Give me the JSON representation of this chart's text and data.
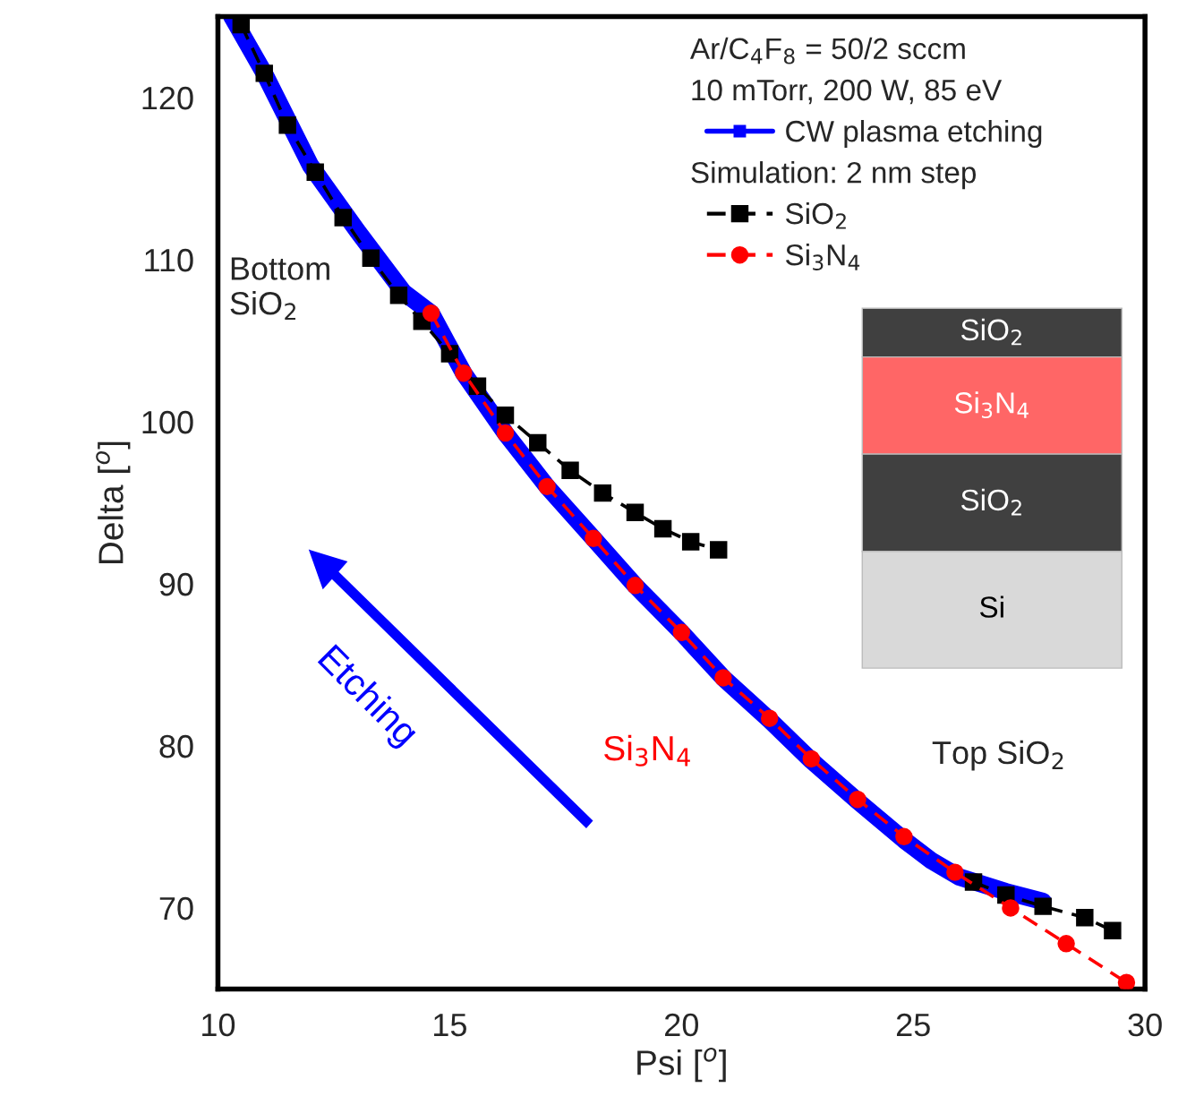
{
  "chart_data": {
    "type": "line",
    "xlabel": "Psi [$^{o}$]",
    "ylabel": "Delta [$^{o}$]",
    "xlim": [
      10,
      30
    ],
    "ylim": [
      65,
      125
    ],
    "xticks": [
      10,
      15,
      20,
      25,
      30
    ],
    "yticks": [
      70,
      80,
      90,
      100,
      110,
      120
    ],
    "grid": false,
    "legend": "top right",
    "series": [
      {
        "name": "CW plasma etching",
        "color": "#0000ff",
        "marker": "square",
        "line_style": "solid",
        "x": [
          10.3,
          11.0,
          12.0,
          13.0,
          14.0,
          14.6,
          15.3,
          16.2,
          17.1,
          18.1,
          19.0,
          20.0,
          20.9,
          21.9,
          22.8,
          23.8,
          24.8,
          25.4,
          26.0,
          27.0,
          27.8
        ],
        "values": [
          125.0,
          121.5,
          115.8,
          111.8,
          108.0,
          106.7,
          103.0,
          99.3,
          96.0,
          92.8,
          89.9,
          87.0,
          84.2,
          81.6,
          79.1,
          76.6,
          74.2,
          72.9,
          71.9,
          71.0,
          70.4
        ]
      },
      {
        "name": "SiO$_{2}$",
        "color": "#000000",
        "marker": "square",
        "line_style": "dashed",
        "x": [
          10.5,
          11.0,
          11.5,
          12.1,
          12.7,
          13.3,
          13.9,
          14.4,
          15.0,
          15.6,
          16.2,
          16.9,
          17.6,
          18.3,
          19.0,
          19.6,
          20.2,
          20.8,
          23.5,
          26.3,
          27.0,
          27.8,
          28.7,
          29.3
        ],
        "values": [
          124.5,
          121.5,
          118.3,
          115.4,
          112.6,
          110.1,
          107.8,
          106.2,
          104.2,
          102.2,
          100.4,
          98.7,
          97.0,
          95.6,
          94.4,
          93.4,
          92.6,
          92.1,
          null,
          71.6,
          70.8,
          70.1,
          69.4,
          68.6
        ]
      },
      {
        "name": "Si$_{3}$N$_{4}$",
        "color": "#ff0000",
        "marker": "circle",
        "line_style": "dashed",
        "x": [
          14.6,
          15.3,
          16.2,
          17.1,
          18.1,
          19.0,
          20.0,
          20.9,
          21.9,
          22.8,
          23.8,
          24.8,
          25.9,
          27.1,
          28.3,
          29.6
        ],
        "values": [
          106.7,
          103.0,
          99.3,
          96.0,
          92.8,
          89.9,
          87.0,
          84.2,
          81.7,
          79.2,
          76.7,
          74.4,
          72.2,
          70.0,
          67.8,
          65.4
        ]
      }
    ],
    "annotations": [
      "Ar/C$_{4}$F$_{8}$ = 50/2 sccm",
      "10 mTorr, 200 W, 85 eV",
      "Simulation: 2 nm step",
      "Bottom\nSiO$_{2}$",
      "Si$_{3}$N$_{4}$",
      "Top SiO$_{2}$",
      "Etching",
      "SiO$_{2}$",
      "Si$_{3}$N$_{4}$",
      "SiO$_{2}$",
      "Si"
    ]
  }
}
